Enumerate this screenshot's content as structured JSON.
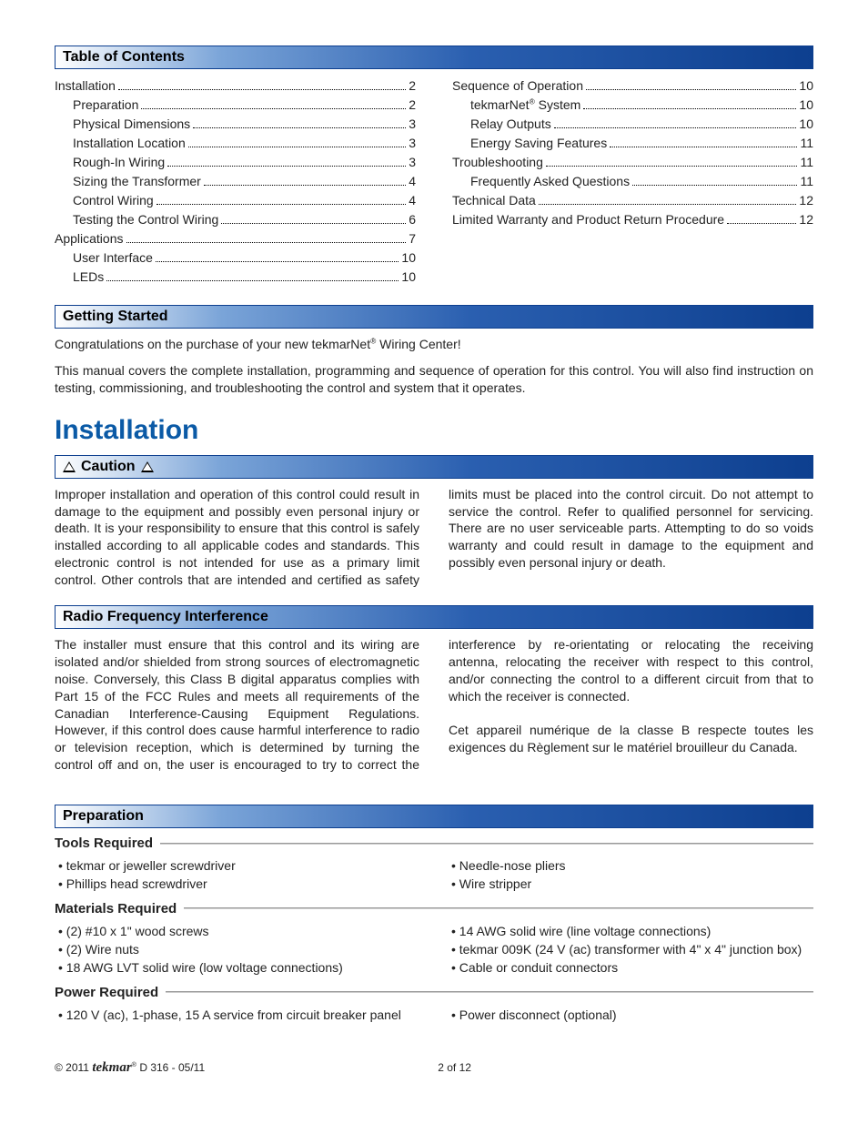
{
  "headers": {
    "toc": "Table of Contents",
    "getting_started": "Getting Started",
    "caution": "Caution",
    "rfi": "Radio Frequency Interference",
    "preparation": "Preparation"
  },
  "toc_left": [
    {
      "label": "Installation",
      "page": "2",
      "indent": 0
    },
    {
      "label": "Preparation",
      "page": "2",
      "indent": 1
    },
    {
      "label": "Physical Dimensions",
      "page": "3",
      "indent": 1
    },
    {
      "label": "Installation Location",
      "page": "3",
      "indent": 1
    },
    {
      "label": "Rough-In Wiring",
      "page": "3",
      "indent": 1
    },
    {
      "label": "Sizing the Transformer",
      "page": "4",
      "indent": 1
    },
    {
      "label": "Control Wiring",
      "page": "4",
      "indent": 1
    },
    {
      "label": "Testing the Control Wiring",
      "page": "6",
      "indent": 1
    },
    {
      "label": "Applications",
      "page": "7",
      "indent": 0
    },
    {
      "label": "User Interface",
      "page": "10",
      "indent": 1
    },
    {
      "label": "LEDs",
      "page": "10",
      "indent": 1
    }
  ],
  "toc_right": [
    {
      "label": "Sequence of Operation",
      "page": "10",
      "indent": 0
    },
    {
      "label": "tekmarNet® System",
      "page": "10",
      "indent": 1
    },
    {
      "label": "Relay Outputs",
      "page": "10",
      "indent": 1
    },
    {
      "label": "Energy Saving Features",
      "page": "11",
      "indent": 1
    },
    {
      "label": "Troubleshooting",
      "page": "11",
      "indent": 0
    },
    {
      "label": "Frequently Asked Questions",
      "page": "11",
      "indent": 1
    },
    {
      "label": "Technical Data",
      "page": "12",
      "indent": 0
    },
    {
      "label": "Limited Warranty and Product Return Procedure",
      "page": "12",
      "indent": 0
    }
  ],
  "getting_started": {
    "p1a": "Congratulations on the purchase of your new tekmarNet",
    "p1b": " Wiring Center!",
    "p2": "This manual covers the complete installation, programming and sequence of operation for this control. You will also find instruction on testing, commissioning, and troubleshooting the control and system that it operates."
  },
  "main_title": "Installation",
  "caution_text": "Improper installation and operation of this control could result in damage to the equipment and possibly even personal injury or death. It is your responsibility to ensure that this control is safely installed according to all applicable codes and standards. This electronic control is not intended for use as a primary limit control. Other controls that are intended and certified as safety limits must be placed into the control circuit. Do not attempt to service the control. Refer to qualified personnel for servicing. There are no user serviceable parts. Attempting to do so voids warranty and could result in damage to the equipment and possibly even personal injury or death.",
  "rfi_p1": "The installer must ensure that this control and its wiring are isolated and/or shielded from strong sources of electromagnetic noise. Conversely, this Class B digital apparatus complies with Part 15 of the FCC Rules and meets all requirements of the Canadian Interference-Causing Equipment Regulations. However, if this control does cause harmful interference to radio or television reception, which is determined by turning the control off and on, the user is encouraged to try to correct the interference by re-orientating or relocating the receiving antenna, relocating the receiver with respect to this control, and/or connecting the control to a different circuit from that to which the receiver is connected.",
  "rfi_p2": "Cet appareil numérique de la classe B respecte toutes les exigences du Règlement sur le matériel brouilleur du Canada.",
  "prep": {
    "tools_title": "Tools Required",
    "tools_left": [
      "tekmar or jeweller screwdriver",
      "Phillips head screwdriver"
    ],
    "tools_right": [
      "Needle-nose pliers",
      "Wire stripper"
    ],
    "materials_title": "Materials Required",
    "materials_left": [
      "(2) #10 x 1\" wood screws",
      "(2) Wire nuts",
      "18 AWG LVT solid wire (low voltage connections)"
    ],
    "materials_right": [
      "14 AWG solid wire (line voltage connections)",
      "tekmar 009K (24 V (ac) transformer with 4\" x 4\" junction box)",
      "Cable or conduit connectors"
    ],
    "power_title": "Power Required",
    "power_left": [
      "120 V (ac), 1-phase, 15 A service from circuit breaker panel"
    ],
    "power_right": [
      "Power disconnect (optional)"
    ]
  },
  "footer": {
    "copyright_pre": "© 2011  ",
    "brand": "tekmar",
    "doc": " D 316 - 05/11",
    "pager": "2 of 12"
  },
  "sup_reg": "®"
}
